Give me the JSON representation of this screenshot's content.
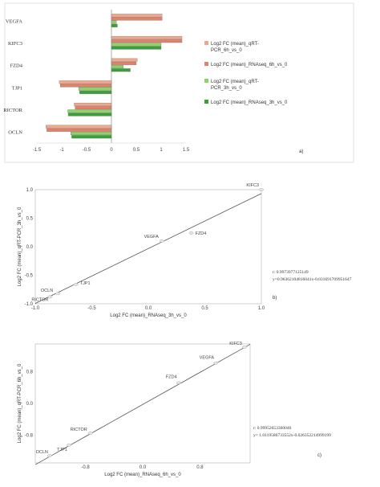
{
  "chart_data": [
    {
      "type": "bar",
      "orientation": "horizontal",
      "panel_label": "a)",
      "categories": [
        "VEGFA",
        "KIFC3",
        "FZD4",
        "TJP1",
        "RICTOR",
        "OCLN"
      ],
      "xlim": [
        -1.5,
        1.5
      ],
      "xticks": [
        "-1.5",
        "-1",
        "-0.5",
        "0",
        "0.5",
        "1",
        "1.5"
      ],
      "grid": false,
      "legend_position": "right",
      "series": [
        {
          "name": "Log2 FC (mean)_qRT-PCR_6h_vs_0",
          "color": "#f2a68a",
          "values": [
            1.02,
            1.42,
            0.52,
            -1.05,
            -0.75,
            -1.32
          ]
        },
        {
          "name": "Log2 FC (mean)_RNAseq_6h_vs_0",
          "color": "#e0826a",
          "values": [
            1.02,
            1.42,
            0.5,
            -1.03,
            -0.73,
            -1.3
          ]
        },
        {
          "name": "Log2 FC (mean)_qRT-PCR_3h_vs_0",
          "color": "#8ed26a",
          "values": [
            0.1,
            1.0,
            0.24,
            -0.66,
            -0.88,
            -0.82
          ]
        },
        {
          "name": "Log2 FC (mean)_RNAseq_3h_vs_0",
          "color": "#3ca03a",
          "values": [
            0.12,
            1.0,
            0.38,
            -0.64,
            -0.87,
            -0.8
          ]
        }
      ]
    },
    {
      "type": "scatter",
      "panel_label": "b)",
      "xlabel": "Log2 FC (mean)_RNAseq_3h_vs_0",
      "ylabel": "Log2 FC (mean)_qRT-PCR_3h_vs_0",
      "xlim": [
        -1.0,
        1.0
      ],
      "ylim": [
        -1.0,
        1.0
      ],
      "xticks": [
        "-1.0",
        "-0.5",
        "0.0",
        "0.5",
        "1.0"
      ],
      "yticks": [
        "-1.0",
        "-0.5",
        "0.0",
        "0.5",
        "1.0"
      ],
      "r_text": "r: 0.9973977125149",
      "equation": "y=0.96362104816041x-0.031691709951647",
      "points": [
        {
          "label": "KIFC3",
          "x": 1.0,
          "y": 1.0
        },
        {
          "label": "VEGFA",
          "x": 0.12,
          "y": 0.1
        },
        {
          "label": "FZD4",
          "x": 0.38,
          "y": 0.24
        },
        {
          "label": "TJP1",
          "x": -0.64,
          "y": -0.66
        },
        {
          "label": "OCLN",
          "x": -0.8,
          "y": -0.82
        },
        {
          "label": "RICTOR",
          "x": -0.87,
          "y": -0.88
        }
      ]
    },
    {
      "type": "scatter",
      "panel_label": "c)",
      "xlabel": "Log2 FC (mean)_RNAseq_6h_vs_0",
      "ylabel": "Log2 FC (mean)_qRT-PCR_6h_vs_0",
      "xlim": [
        -1.5,
        1.5
      ],
      "ylim": [
        -1.5,
        1.5
      ],
      "xticks": [
        "-0.8",
        "0.0",
        "0.8"
      ],
      "yticks": [
        "-0.8",
        "0.0",
        "0.8"
      ],
      "r_text": "r: 0.99952653360046",
      "equation": "y= 1.0119586733552x-0.026352214999199",
      "points": [
        {
          "label": "KIFC3",
          "x": 1.42,
          "y": 1.42
        },
        {
          "label": "VEGFA",
          "x": 1.02,
          "y": 1.02
        },
        {
          "label": "FZD4",
          "x": 0.5,
          "y": 0.52
        },
        {
          "label": "RICTOR",
          "x": -0.73,
          "y": -0.75
        },
        {
          "label": "TJP1",
          "x": -1.03,
          "y": -1.05
        },
        {
          "label": "OCLN",
          "x": -1.3,
          "y": -1.32
        }
      ]
    }
  ]
}
